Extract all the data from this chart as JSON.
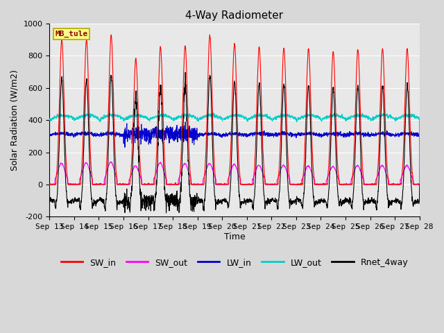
{
  "title": "4-Way Radiometer",
  "xlabel": "Time",
  "ylabel": "Solar Radiation (W/m2)",
  "ylim": [
    -200,
    1000
  ],
  "x_tick_labels": [
    "Sep 13",
    "Sep 14",
    "Sep 15",
    "Sep 16",
    "Sep 17",
    "Sep 18",
    "Sep 19",
    "Sep 20",
    "Sep 21",
    "Sep 22",
    "Sep 23",
    "Sep 24",
    "Sep 25",
    "Sep 26",
    "Sep 27",
    "Sep 28"
  ],
  "station_label": "MB_tule",
  "colors": {
    "SW_in": "#ff0000",
    "SW_out": "#ff00ff",
    "LW_in": "#0000cc",
    "LW_out": "#00cccc",
    "Rnet_4way": "#000000"
  },
  "background_color": "#d8d8d8",
  "plot_bg_color": "#e8e8e8",
  "title_fontsize": 11,
  "label_fontsize": 9,
  "tick_fontsize": 8,
  "legend_fontsize": 9,
  "n_days": 15,
  "points_per_day": 144,
  "sw_in_peaks": [
    900,
    900,
    930,
    780,
    855,
    860,
    925,
    875,
    855,
    850,
    845,
    825,
    840,
    845,
    845
  ],
  "sw_out_peaks": [
    130,
    135,
    140,
    115,
    135,
    130,
    130,
    125,
    120,
    120,
    115,
    112,
    118,
    118,
    118
  ],
  "lw_in_base": 305,
  "lw_out_base": 400,
  "lw_in_noisy_days": [
    3,
    4,
    5
  ],
  "lw_in_noise_extra": 25,
  "rnet_night": -80,
  "grid_color": "#ffffff",
  "grid_lw": 0.8
}
